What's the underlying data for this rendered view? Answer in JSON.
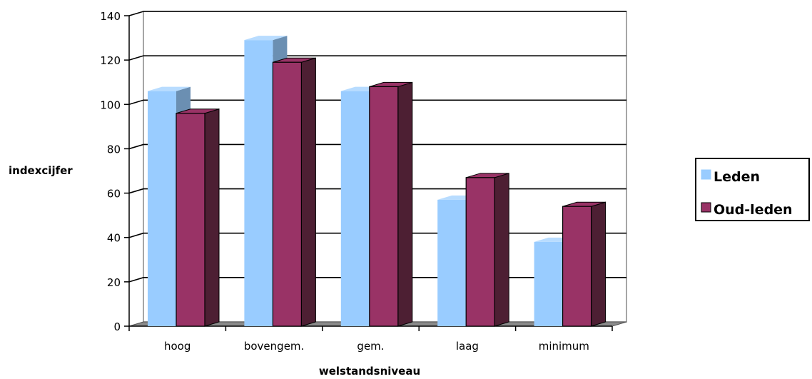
{
  "chart_data": {
    "type": "bar",
    "categories": [
      "hoog",
      "bovengem.",
      "gem.",
      "laag",
      "minimum"
    ],
    "series": [
      {
        "name": "Leden",
        "values": [
          106,
          129,
          106,
          57,
          38
        ],
        "color": "#99ccff"
      },
      {
        "name": "Oud-leden",
        "values": [
          96,
          119,
          108,
          67,
          54
        ],
        "color": "#993366"
      }
    ],
    "title": "",
    "xlabel": "welstandsniveau",
    "ylabel": "indexcijfer",
    "ylim": [
      0,
      140
    ],
    "yticks": [
      0,
      20,
      40,
      60,
      80,
      100,
      120,
      140
    ],
    "grid": true,
    "legend_position": "right",
    "style": "3d-clustered-column"
  }
}
